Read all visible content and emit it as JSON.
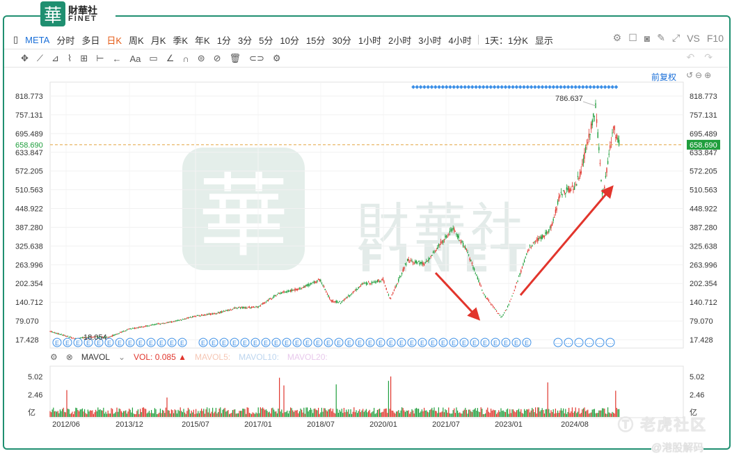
{
  "brand": {
    "mark": "華",
    "cn": "財華社",
    "en": "FINET"
  },
  "toolbar": {
    "symbol": "META",
    "periods": [
      "分时",
      "多日",
      "日K",
      "周K",
      "月K",
      "季K",
      "年K",
      "1分",
      "3分",
      "5分",
      "10分",
      "15分",
      "30分",
      "1小时",
      "2小时",
      "3小时",
      "4小时"
    ],
    "active_period": "日K",
    "interval": "1天：1分K",
    "display": "显示",
    "vs_label": "VS",
    "f10_label": "F10"
  },
  "drawing_tools": {
    "text_tool": "Aa"
  },
  "adjust_label": "前复权",
  "watermark": {
    "cn": "財華社",
    "en": "FINET"
  },
  "price_axis": {
    "ticks": [
      "818.773",
      "757.131",
      "695.489",
      "633.847",
      "572.205",
      "510.563",
      "448.922",
      "387.280",
      "325.638",
      "263.996",
      "202.354",
      "140.712",
      "79.070",
      "17.428"
    ]
  },
  "current_price": "658.690",
  "annotations": {
    "high": "786.637",
    "low": "18.054"
  },
  "date_axis": {
    "labels": [
      "2012/06",
      "2013/12",
      "2015/07",
      "2017/01",
      "2018/07",
      "2020/01",
      "2021/07",
      "2023/01",
      "2024/08"
    ]
  },
  "volume_panel": {
    "indicator": "MAVOL",
    "vol_label": "VOL:",
    "vol_value": "0.085",
    "ma5": "MAVOL5:",
    "ma10": "MAVOL10:",
    "ma20": "MAVOL20:",
    "axis": [
      "5.02",
      "2.46",
      "亿"
    ]
  },
  "footer": {
    "tiger": "老虎社区",
    "hk": "@港股解码"
  },
  "colors": {
    "up": "#e0362d",
    "down": "#1f9e3c",
    "accent": "#1f8f70",
    "price_line": "#e4a23c",
    "event": "#3a8ee6",
    "arrow": "#e2352c"
  },
  "chart_data": {
    "type": "candlestick",
    "title": "META",
    "ylim": [
      17.428,
      818.773
    ],
    "x_labels": [
      "2012/06",
      "2013/12",
      "2015/07",
      "2017/01",
      "2018/07",
      "2020/01",
      "2021/07",
      "2023/01",
      "2024/08"
    ],
    "trend": [
      [
        "2012/06",
        30
      ],
      [
        "2012/09",
        20
      ],
      [
        "2013/01",
        28
      ],
      [
        "2013/06",
        25
      ],
      [
        "2013/12",
        52
      ],
      [
        "2014/06",
        65
      ],
      [
        "2015/01",
        77
      ],
      [
        "2015/07",
        95
      ],
      [
        "2016/01",
        104
      ],
      [
        "2016/07",
        122
      ],
      [
        "2017/01",
        125
      ],
      [
        "2017/07",
        170
      ],
      [
        "2018/01",
        185
      ],
      [
        "2018/07",
        215
      ],
      [
        "2018/10",
        145
      ],
      [
        "2019/01",
        140
      ],
      [
        "2019/07",
        200
      ],
      [
        "2020/01",
        215
      ],
      [
        "2020/03",
        150
      ],
      [
        "2020/08",
        280
      ],
      [
        "2021/01",
        265
      ],
      [
        "2021/07",
        355
      ],
      [
        "2021/09",
        384
      ],
      [
        "2022/01",
        310
      ],
      [
        "2022/06",
        165
      ],
      [
        "2022/11",
        90
      ],
      [
        "2023/01",
        130
      ],
      [
        "2023/07",
        320
      ],
      [
        "2024/01",
        380
      ],
      [
        "2024/04",
        500
      ],
      [
        "2024/08",
        520
      ],
      [
        "2024/10",
        580
      ],
      [
        "2025/02",
        786.637
      ],
      [
        "2025/04",
        480
      ],
      [
        "2025/07",
        720
      ],
      [
        "2025/09",
        658.69
      ]
    ],
    "high": 786.637,
    "low": 18.054,
    "last": 658.69,
    "volume_axis": [
      "5.02",
      "2.46"
    ]
  }
}
